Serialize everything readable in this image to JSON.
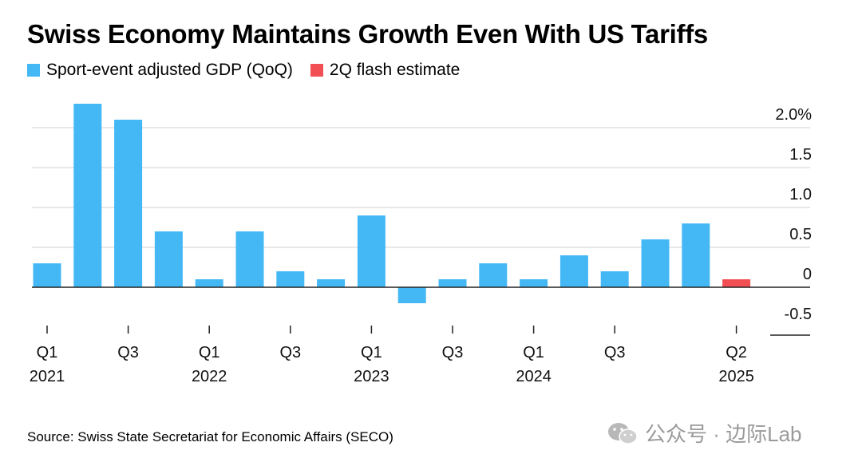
{
  "title": "Swiss Economy Maintains Growth Even With US Tariffs",
  "legend": [
    {
      "label": "Sport-event adjusted GDP (QoQ)",
      "color": "#44b8f5"
    },
    {
      "label": "2Q flash estimate",
      "color": "#f24f55"
    }
  ],
  "source": "Source: Swiss State Secretariat for Economic Affairs (SECO)",
  "watermark": {
    "text": "公众号 · 边际Lab",
    "icon": "wechat-icon"
  },
  "chart_data": {
    "type": "bar",
    "categories": [
      "Q1 2021",
      "Q2 2021",
      "Q3 2021",
      "Q4 2021",
      "Q1 2022",
      "Q2 2022",
      "Q3 2022",
      "Q4 2022",
      "Q1 2023",
      "Q2 2023",
      "Q3 2023",
      "Q4 2023",
      "Q1 2024",
      "Q2 2024",
      "Q3 2024",
      "Q4 2024",
      "Q1 2025",
      "Q2 2025"
    ],
    "series": [
      {
        "name": "Sport-event adjusted GDP (QoQ)",
        "color": "#44b8f5",
        "values": [
          0.3,
          2.3,
          2.1,
          0.7,
          0.1,
          0.7,
          0.2,
          0.1,
          0.9,
          -0.2,
          0.1,
          0.3,
          0.1,
          0.4,
          0.2,
          0.6,
          0.8,
          null
        ]
      },
      {
        "name": "2Q flash estimate",
        "color": "#f24f55",
        "values": [
          null,
          null,
          null,
          null,
          null,
          null,
          null,
          null,
          null,
          null,
          null,
          null,
          null,
          null,
          null,
          null,
          null,
          0.1
        ]
      }
    ],
    "y_ticks": [
      {
        "value": 2.0,
        "label": "2.0%"
      },
      {
        "value": 1.5,
        "label": "1.5"
      },
      {
        "value": 1.0,
        "label": "1.0"
      },
      {
        "value": 0.5,
        "label": "0.5"
      },
      {
        "value": 0,
        "label": "0"
      },
      {
        "value": -0.5,
        "label": "-0.5"
      }
    ],
    "x_tick_labels": [
      {
        "index": 0,
        "quarter": "Q1",
        "year": "2021"
      },
      {
        "index": 2,
        "quarter": "Q3",
        "year": ""
      },
      {
        "index": 4,
        "quarter": "Q1",
        "year": "2022"
      },
      {
        "index": 6,
        "quarter": "Q3",
        "year": ""
      },
      {
        "index": 8,
        "quarter": "Q1",
        "year": "2023"
      },
      {
        "index": 10,
        "quarter": "Q3",
        "year": ""
      },
      {
        "index": 12,
        "quarter": "Q1",
        "year": "2024"
      },
      {
        "index": 14,
        "quarter": "Q3",
        "year": ""
      },
      {
        "index": 17,
        "quarter": "Q2",
        "year": "2025"
      }
    ],
    "ylim": [
      -0.5,
      2.3
    ],
    "grid": true,
    "y_axis_position": "right",
    "legend_position": "top-left"
  }
}
